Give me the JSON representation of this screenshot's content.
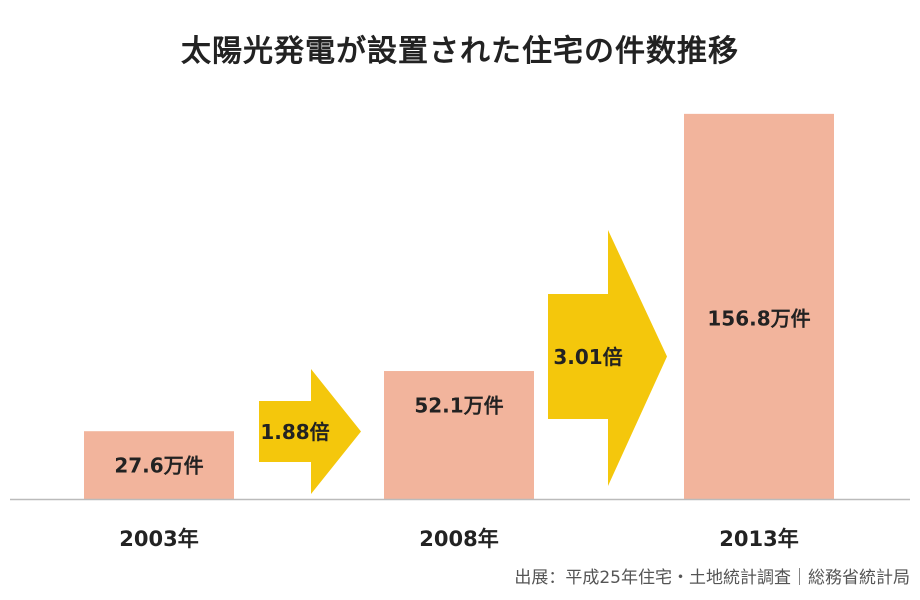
{
  "colors": {
    "bar": "#F2B49C",
    "arrow": "#F4C70C",
    "baseline": "#BBBBBB",
    "text": "#222222",
    "source_text": "#555555"
  },
  "chart_data": {
    "type": "bar",
    "title": "太陽光発電が設置された住宅の件数推移",
    "xlabel": "",
    "ylabel": "",
    "unit": "万件",
    "ylim": [
      0,
      160
    ],
    "grid": false,
    "categories": [
      "2003年",
      "2008年",
      "2013年"
    ],
    "values": [
      27.6,
      52.1,
      156.8
    ],
    "data_labels": [
      "27.6万件",
      "52.1万件",
      "156.8万件"
    ],
    "growth_annotations": [
      {
        "from": "2003年",
        "to": "2008年",
        "label": "1.88倍"
      },
      {
        "from": "2008年",
        "to": "2013年",
        "label": "3.01倍"
      }
    ]
  },
  "source": "出展：平成25年住宅・土地統計調査｜総務省統計局"
}
